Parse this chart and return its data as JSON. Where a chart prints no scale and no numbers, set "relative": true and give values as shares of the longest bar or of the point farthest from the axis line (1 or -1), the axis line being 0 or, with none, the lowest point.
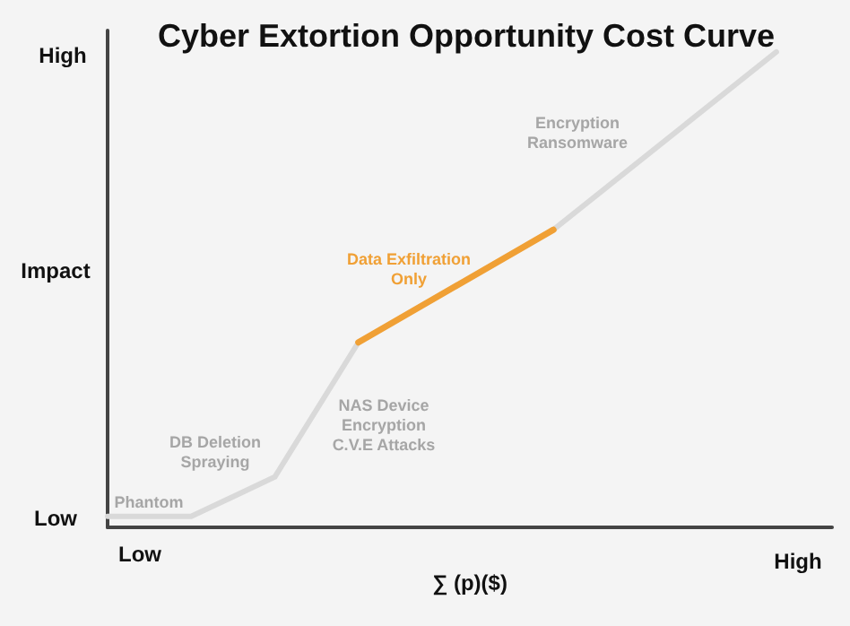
{
  "chart_data": {
    "type": "line",
    "title": "Cyber Extortion Opportunity Cost Curve",
    "xlabel": "∑ (p)($)",
    "ylabel": "Impact",
    "relative": true,
    "categories": [
      null,
      null,
      null,
      null,
      null,
      null,
      null,
      null,
      null,
      null,
      null,
      null,
      null,
      null,
      null,
      null,
      null,
      null,
      null,
      null,
      null,
      null,
      null,
      null,
      null,
      null,
      null
    ],
    "series": [
      {
        "color": "#d9d9d9",
        "values": [
          0.023,
          null,
          null,
          0.023,
          null,
          null,
          0.106,
          null,
          null,
          0.389,
          null,
          null,
          null,
          null,
          null,
          null,
          0.626,
          null,
          null,
          null,
          null,
          null,
          null,
          null,
          1,
          null,
          null
        ]
      },
      {
        "color": "#f0a035",
        "values": [
          null,
          null,
          null,
          null,
          null,
          null,
          null,
          null,
          null,
          0.389,
          null,
          null,
          null,
          null,
          null,
          null,
          0.626,
          null,
          null,
          null,
          null,
          null,
          null,
          null,
          null,
          null,
          null
        ]
      }
    ],
    "annotations": [
      "Low",
      "High",
      "Low",
      "High",
      "Phantom",
      "DB Deletion\nSpraying",
      "NAS Device\nEncryption\nC.V.E Attacks",
      "Data Exfiltration\nOnly",
      "Encryption\nRansomware"
    ],
    "marker": "none",
    "line_style": "solid"
  }
}
